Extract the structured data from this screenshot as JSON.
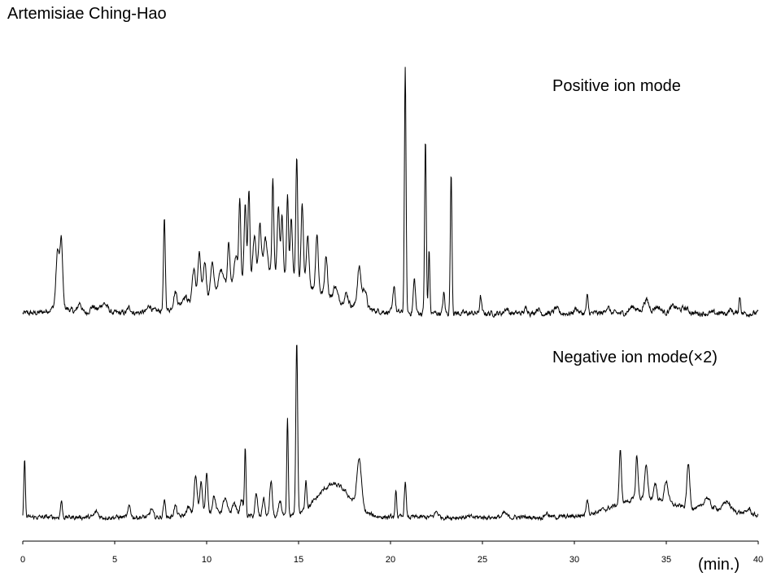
{
  "chart_data": {
    "type": "line",
    "title": "Artemisiae Ching-Hao",
    "xlabel": "(min.)",
    "ylabel": "",
    "xlim": [
      0,
      40
    ],
    "xticks": [
      0,
      5,
      10,
      15,
      20,
      25,
      30,
      35,
      40
    ],
    "grid": false,
    "legend": "none",
    "line_color": "#000000",
    "series": [
      {
        "name": "Positive ion mode",
        "baseline": 4,
        "noise": 1.6,
        "peaks": [
          [
            1.9,
            17,
            0.09
          ],
          [
            2.1,
            19,
            0.07
          ],
          [
            3.1,
            3,
            0.1
          ],
          [
            3.8,
            2,
            0.15
          ],
          [
            4.4,
            3,
            0.2
          ],
          [
            5.8,
            1.5,
            0.1
          ],
          [
            6.9,
            2,
            0.1
          ],
          [
            7.7,
            27,
            0.05
          ],
          [
            8.3,
            5,
            0.1
          ],
          [
            8.8,
            3,
            0.15
          ],
          [
            9.3,
            10,
            0.09
          ],
          [
            9.6,
            14,
            0.08
          ],
          [
            9.9,
            11,
            0.08
          ],
          [
            10.3,
            10,
            0.08
          ],
          [
            10.8,
            6,
            0.15
          ],
          [
            11.2,
            14,
            0.06
          ],
          [
            11.6,
            8,
            0.1
          ],
          [
            11.8,
            24,
            0.05
          ],
          [
            12.1,
            22,
            0.06
          ],
          [
            12.3,
            26,
            0.05
          ],
          [
            12.6,
            12,
            0.08
          ],
          [
            12.9,
            15,
            0.07
          ],
          [
            13.2,
            10,
            0.1
          ],
          [
            13.6,
            28,
            0.05
          ],
          [
            13.9,
            20,
            0.06
          ],
          [
            14.1,
            18,
            0.06
          ],
          [
            14.4,
            24,
            0.05
          ],
          [
            14.6,
            18,
            0.06
          ],
          [
            14.9,
            38,
            0.05
          ],
          [
            15.2,
            24,
            0.06
          ],
          [
            15.5,
            14,
            0.07
          ],
          [
            16.0,
            17,
            0.07
          ],
          [
            16.5,
            12,
            0.07
          ],
          [
            17.0,
            4,
            0.1
          ],
          [
            17.6,
            3,
            0.1
          ],
          [
            18.3,
            12,
            0.1
          ],
          [
            18.6,
            6,
            0.1
          ],
          [
            20.2,
            8,
            0.06
          ],
          [
            20.8,
            73,
            0.045
          ],
          [
            21.3,
            10,
            0.06
          ],
          [
            21.9,
            52,
            0.045
          ],
          [
            22.1,
            19,
            0.04
          ],
          [
            22.9,
            6,
            0.05
          ],
          [
            23.3,
            42,
            0.045
          ],
          [
            24.9,
            5,
            0.05
          ],
          [
            26.3,
            1.5,
            0.1
          ],
          [
            27.4,
            1.5,
            0.1
          ],
          [
            28.0,
            1.5,
            0.1
          ],
          [
            29.0,
            1.5,
            0.1
          ],
          [
            30.1,
            1.5,
            0.1
          ],
          [
            30.7,
            5,
            0.05
          ],
          [
            31.8,
            2,
            0.1
          ],
          [
            33.2,
            2,
            0.2
          ],
          [
            33.9,
            4,
            0.15
          ],
          [
            34.5,
            2,
            0.2
          ],
          [
            35.4,
            2,
            0.2
          ],
          [
            36.0,
            1.5,
            0.2
          ],
          [
            38.5,
            1,
            0.1
          ],
          [
            39.0,
            5,
            0.05
          ]
        ],
        "humps": [
          [
            13.4,
            12,
            2.5
          ],
          [
            2.0,
            2,
            0.5
          ]
        ]
      },
      {
        "name": "Negative ion mode(×2)",
        "baseline": 4,
        "noise": 1.6,
        "peaks": [
          [
            0.1,
            22,
            0.04
          ],
          [
            2.1,
            6,
            0.05
          ],
          [
            4.0,
            2,
            0.1
          ],
          [
            5.8,
            4,
            0.07
          ],
          [
            7.0,
            3,
            0.08
          ],
          [
            7.7,
            6,
            0.06
          ],
          [
            8.3,
            4,
            0.08
          ],
          [
            9.0,
            3,
            0.1
          ],
          [
            9.4,
            14,
            0.08
          ],
          [
            9.7,
            12,
            0.07
          ],
          [
            10.0,
            14,
            0.06
          ],
          [
            10.4,
            6,
            0.08
          ],
          [
            11.0,
            5,
            0.1
          ],
          [
            11.5,
            4,
            0.1
          ],
          [
            11.9,
            6,
            0.08
          ],
          [
            12.1,
            25,
            0.04
          ],
          [
            12.7,
            8,
            0.07
          ],
          [
            13.1,
            7,
            0.07
          ],
          [
            13.5,
            13,
            0.07
          ],
          [
            14.0,
            6,
            0.08
          ],
          [
            14.4,
            36,
            0.04
          ],
          [
            14.9,
            64,
            0.05
          ],
          [
            15.4,
            11,
            0.05
          ],
          [
            18.3,
            18,
            0.12
          ],
          [
            20.3,
            10,
            0.04
          ],
          [
            20.8,
            13,
            0.05
          ],
          [
            22.5,
            2,
            0.1
          ],
          [
            26.2,
            1.5,
            0.1
          ],
          [
            28.5,
            1.5,
            0.1
          ],
          [
            30.7,
            6,
            0.06
          ],
          [
            32.5,
            19,
            0.06
          ],
          [
            33.4,
            16,
            0.06
          ],
          [
            33.9,
            12,
            0.08
          ],
          [
            34.4,
            6,
            0.08
          ],
          [
            35.0,
            8,
            0.1
          ],
          [
            36.2,
            16,
            0.08
          ],
          [
            37.2,
            4,
            0.15
          ],
          [
            38.3,
            3,
            0.15
          ],
          [
            39.5,
            2,
            0.1
          ]
        ],
        "humps": [
          [
            16.9,
            12,
            0.9
          ],
          [
            10.5,
            2,
            1.0
          ],
          [
            33.8,
            7,
            1.6
          ],
          [
            37.8,
            3,
            1.2
          ]
        ]
      }
    ]
  }
}
